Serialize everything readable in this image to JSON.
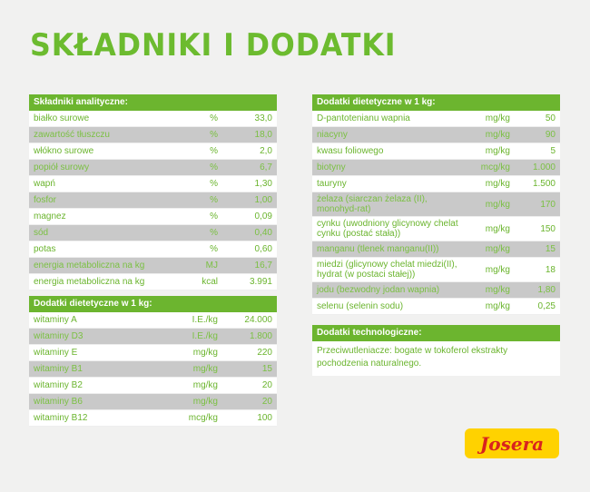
{
  "title": "SKŁADNIKI I DODATKI",
  "analytical": {
    "header": "Składniki analityczne:",
    "rows": [
      [
        "białko surowe",
        "%",
        "33,0"
      ],
      [
        "zawartość tłuszczu",
        "%",
        "18,0"
      ],
      [
        "włókno surowe",
        "%",
        "2,0"
      ],
      [
        "popiół surowy",
        "%",
        "6,7"
      ],
      [
        "wapń",
        "%",
        "1,30"
      ],
      [
        "fosfor",
        "%",
        "1,00"
      ],
      [
        "magnez",
        "%",
        "0,09"
      ],
      [
        "sód",
        "%",
        "0,40"
      ],
      [
        "potas",
        "%",
        "0,60"
      ],
      [
        "energia metaboliczna na kg",
        "MJ",
        "16,7"
      ],
      [
        "energia metaboliczna na kg",
        "kcal",
        "3.991"
      ]
    ]
  },
  "vitamins": {
    "header": "Dodatki dietetyczne w 1 kg:",
    "rows": [
      [
        "witaminy A",
        "I.E./kg",
        "24.000"
      ],
      [
        "witaminy D3",
        "I.E./kg",
        "1.800"
      ],
      [
        "witaminy E",
        "mg/kg",
        "220"
      ],
      [
        "witaminy B1",
        "mg/kg",
        "15"
      ],
      [
        "witaminy B2",
        "mg/kg",
        "20"
      ],
      [
        "witaminy B6",
        "mg/kg",
        "20"
      ],
      [
        "witaminy B12",
        "mcg/kg",
        "100"
      ]
    ]
  },
  "dietary": {
    "header": "Dodatki dietetyczne w 1 kg:",
    "rows": [
      [
        "D-pantotenianu wapnia",
        "mg/kg",
        "50"
      ],
      [
        "niacyny",
        "mg/kg",
        "90"
      ],
      [
        "kwasu foliowego",
        "mg/kg",
        "5"
      ],
      [
        "biotyny",
        "mcg/kg",
        "1.000"
      ],
      [
        "tauryny",
        "mg/kg",
        "1.500"
      ],
      [
        "żelaza (siarczan żelaza (II), monohyd-rat)",
        "mg/kg",
        "170"
      ],
      [
        "cynku (uwodniony glicynowy chelat cynku (postać stała))",
        "mg/kg",
        "150"
      ],
      [
        "manganu (tlenek manganu(II))",
        "mg/kg",
        "15"
      ],
      [
        "miedzi (glicynowy chelat miedzi(II), hydrat (w postaci stałej))",
        "mg/kg",
        "18"
      ],
      [
        "jodu (bezwodny jodan wapnia)",
        "mg/kg",
        "1,80"
      ],
      [
        "selenu (selenin sodu)",
        "mg/kg",
        "0,25"
      ]
    ]
  },
  "technological": {
    "header": "Dodatki technologiczne:",
    "text": "Przeciwutleniacze: bogate w tokoferol ekstrakty pochodzenia naturalnego."
  },
  "logo": "Josera",
  "colors": {
    "accent": "#6cb52f",
    "row_alt": "#c9c9c9",
    "logo_bg": "#ffd200",
    "logo_text": "#d8231e"
  }
}
